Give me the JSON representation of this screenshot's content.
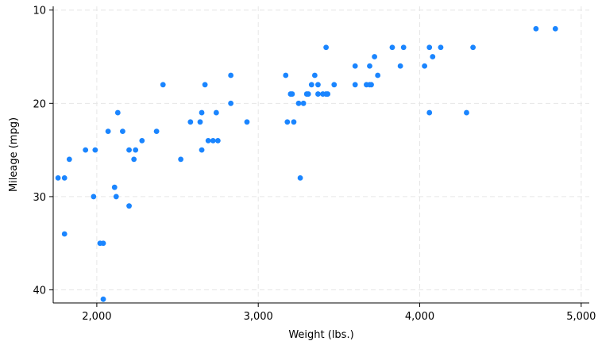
{
  "chart_data": {
    "type": "scatter",
    "xlabel": "Weight (lbs.)",
    "ylabel": "Mileage (mpg)",
    "xlim": [
      1730,
      5050
    ],
    "ylim": [
      41.4,
      9.6
    ],
    "y_reversed": true,
    "grid": true,
    "legend": "none",
    "x_ticks": [
      2000,
      3000,
      4000,
      5000
    ],
    "x_tick_labels": [
      "2,000",
      "3,000",
      "4,000",
      "5,000"
    ],
    "y_ticks": [
      10,
      20,
      30,
      40
    ],
    "y_tick_labels": [
      "10",
      "20",
      "30",
      "40"
    ],
    "marker_color": "#1a85ff",
    "grid_color": "#e6e6e6",
    "points": [
      [
        1760,
        28
      ],
      [
        1800,
        28
      ],
      [
        1800,
        34
      ],
      [
        1830,
        26
      ],
      [
        1930,
        25
      ],
      [
        1980,
        30
      ],
      [
        1990,
        25
      ],
      [
        2020,
        35
      ],
      [
        2040,
        35
      ],
      [
        2040,
        41
      ],
      [
        2070,
        23
      ],
      [
        2110,
        29
      ],
      [
        2120,
        30
      ],
      [
        2130,
        21
      ],
      [
        2160,
        23
      ],
      [
        2200,
        25
      ],
      [
        2200,
        31
      ],
      [
        2230,
        26
      ],
      [
        2240,
        25
      ],
      [
        2280,
        24
      ],
      [
        2370,
        23
      ],
      [
        2410,
        18
      ],
      [
        2520,
        26
      ],
      [
        2580,
        22
      ],
      [
        2640,
        22
      ],
      [
        2650,
        25
      ],
      [
        2650,
        21
      ],
      [
        2670,
        18
      ],
      [
        2690,
        24
      ],
      [
        2720,
        24
      ],
      [
        2740,
        21
      ],
      [
        2750,
        24
      ],
      [
        2830,
        20
      ],
      [
        2830,
        17
      ],
      [
        2930,
        22
      ],
      [
        3170,
        17
      ],
      [
        3180,
        22
      ],
      [
        3200,
        19
      ],
      [
        3210,
        19
      ],
      [
        3220,
        22
      ],
      [
        3250,
        20
      ],
      [
        3260,
        28
      ],
      [
        3280,
        20
      ],
      [
        3300,
        19
      ],
      [
        3310,
        19
      ],
      [
        3330,
        18
      ],
      [
        3350,
        17
      ],
      [
        3370,
        18
      ],
      [
        3370,
        19
      ],
      [
        3400,
        19
      ],
      [
        3420,
        14
      ],
      [
        3420,
        19
      ],
      [
        3430,
        19
      ],
      [
        3470,
        18
      ],
      [
        3600,
        18
      ],
      [
        3600,
        16
      ],
      [
        3670,
        18
      ],
      [
        3690,
        18
      ],
      [
        3690,
        16
      ],
      [
        3700,
        18
      ],
      [
        3720,
        15
      ],
      [
        3740,
        17
      ],
      [
        3830,
        14
      ],
      [
        3880,
        16
      ],
      [
        3900,
        14
      ],
      [
        4030,
        16
      ],
      [
        4060,
        14
      ],
      [
        4060,
        21
      ],
      [
        4080,
        15
      ],
      [
        4130,
        14
      ],
      [
        4290,
        21
      ],
      [
        4330,
        14
      ],
      [
        4720,
        12
      ],
      [
        4840,
        12
      ]
    ]
  }
}
